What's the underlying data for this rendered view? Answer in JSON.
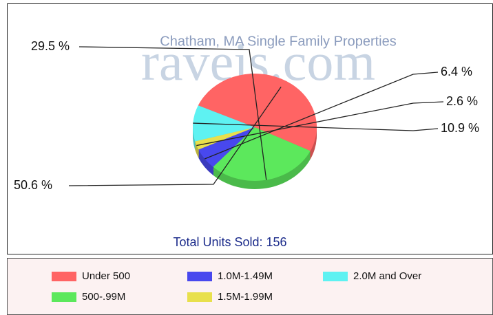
{
  "chart_data": {
    "type": "pie",
    "title": "Chatham, MA Single Family Properties",
    "watermark": "raveis.com",
    "footer": "Total Units Sold: 156",
    "categories": [
      "Under 500",
      "500-.99M",
      "1.0M-1.49M",
      "1.5M-1.99M",
      "2.0M and Over"
    ],
    "values": [
      50.6,
      29.5,
      6.4,
      2.6,
      10.9
    ],
    "value_labels": [
      "50.6 %",
      "29.5 %",
      "6.4 %",
      "2.6 %",
      "10.9 %"
    ],
    "colors": [
      "#ff6464",
      "#5ce85c",
      "#4848ee",
      "#e8e04c",
      "#5ef2f2"
    ]
  }
}
